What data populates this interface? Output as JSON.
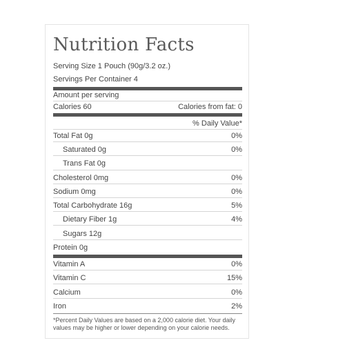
{
  "label": {
    "title": "Nutrition Facts",
    "serving_size": "Serving Size 1 Pouch (90g/3.2 oz.)",
    "servings_per_container": "Servings Per Container 4",
    "amount_per_serving": "Amount per serving",
    "calories": "Calories 60",
    "calories_from_fat": "Calories from fat: 0",
    "daily_value_header": "% Daily Value*",
    "nutrients": [
      {
        "name": "Total Fat 0g",
        "dv": "0%"
      },
      {
        "name": "Saturated 0g",
        "dv": "0%"
      },
      {
        "name": "Trans Fat 0g",
        "dv": ""
      },
      {
        "name": "Cholesterol 0mg",
        "dv": "0%"
      },
      {
        "name": "Sodium 0mg",
        "dv": "0%"
      },
      {
        "name": "Total Carbohydrate 16g",
        "dv": "5%"
      },
      {
        "name": "Dietary Fiber 1g",
        "dv": "4%"
      },
      {
        "name": "Sugars 12g",
        "dv": ""
      },
      {
        "name": "Protein 0g",
        "dv": ""
      }
    ],
    "vitamins": [
      {
        "name": "Vitamin A",
        "dv": "0%"
      },
      {
        "name": "Vitamin C",
        "dv": "15%"
      },
      {
        "name": "Calcium",
        "dv": "0%"
      },
      {
        "name": "Iron",
        "dv": "2%"
      }
    ],
    "footnote": "*Percent Daily Values are based on a 2,000 calorie diet. Your daily values may be higher or lower depending on your calorie needs."
  }
}
